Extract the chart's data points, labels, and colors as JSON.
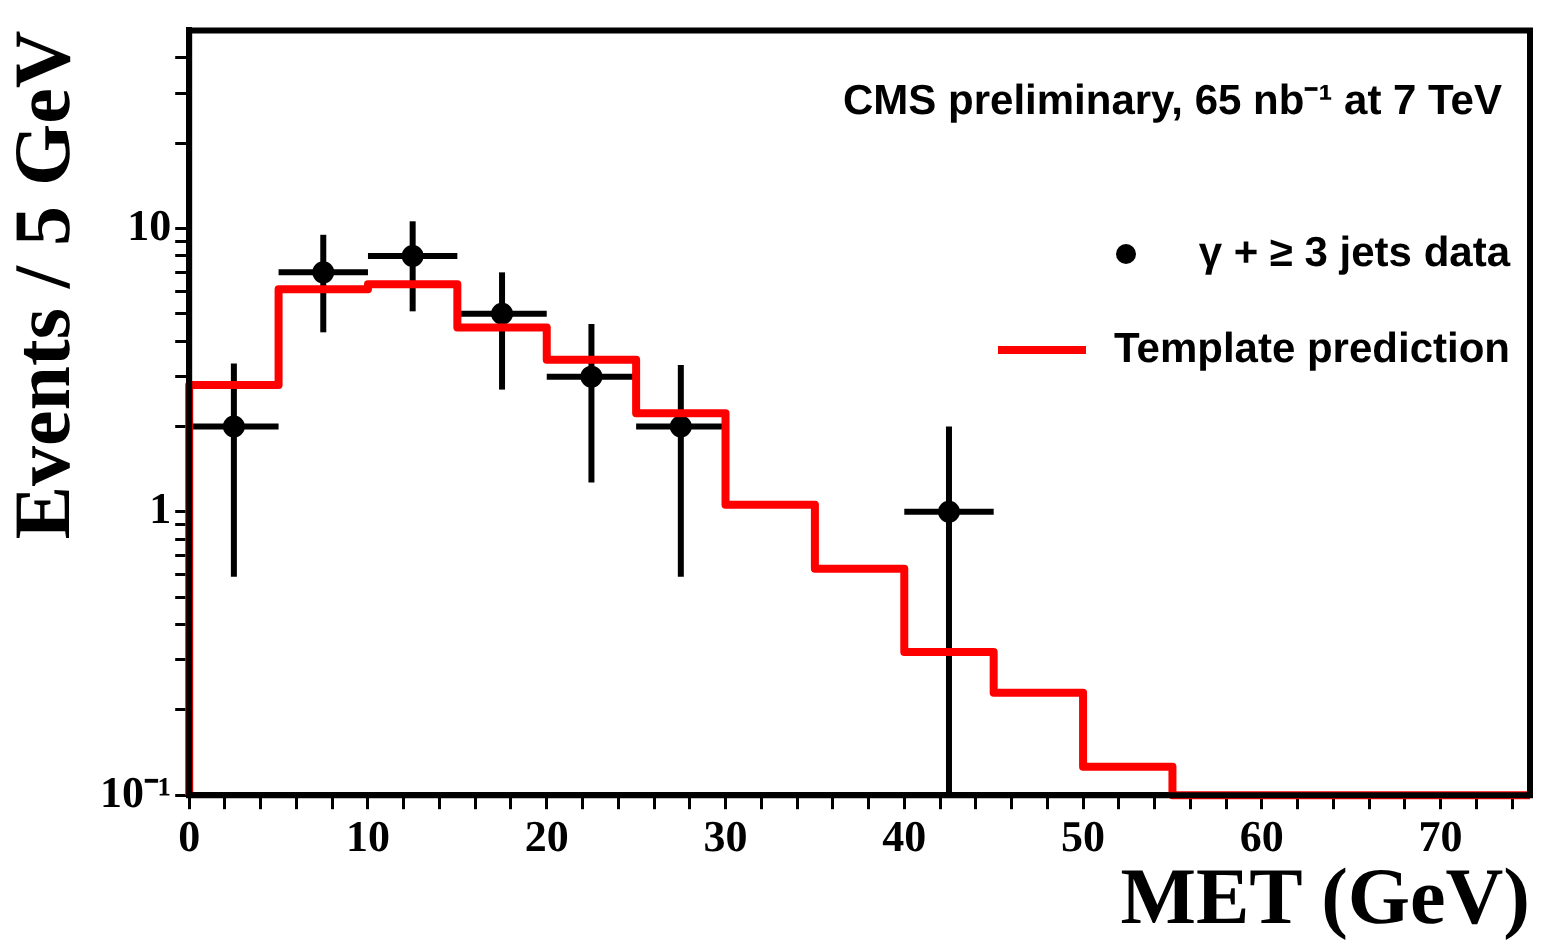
{
  "chart_data": {
    "type": "histogram",
    "title": "CMS preliminary, 65 nb⁻¹ at 7 TeV",
    "xlabel": "MET (GeV)",
    "ylabel": "Events / 5 GeV",
    "series": [
      {
        "type": "scatter",
        "name": "γ + ≥ 3 jets data",
        "color": "#000000",
        "marker": "circle",
        "x": [
          2.5,
          7.5,
          12.5,
          17.5,
          22.5,
          27.5,
          42.5
        ],
        "values": [
          2,
          7,
          8,
          5,
          3,
          2,
          1
        ],
        "errors": [
          [
            0.59,
            3.34
          ],
          [
            4.3,
            9.5
          ],
          [
            5.1,
            10.6
          ],
          [
            2.7,
            7
          ],
          [
            1.27,
            4.6
          ],
          [
            0.59,
            3.3
          ],
          [
            0.1,
            2
          ]
        ],
        "xerrors": [
          2.5,
          2.5,
          2.5,
          2.5,
          2.5,
          2.5,
          2.5
        ]
      },
      {
        "name": "Template prediction",
        "color": "#ff0000",
        "bins": [
          0,
          5,
          10,
          15,
          20,
          25,
          30,
          35,
          40,
          45,
          50,
          55,
          75
        ],
        "values": [
          2.8,
          6.1,
          6.35,
          4.47,
          3.44,
          2.23,
          1.06,
          0.63,
          0.32,
          0.23,
          0.126,
          0.1
        ]
      }
    ],
    "log": "y",
    "grid": false,
    "legend": "top right",
    "xlim": [
      0,
      75
    ],
    "ylim": [
      0.1,
      50
    ],
    "xticks": [
      0,
      {
        "value": 2,
        "label": null
      },
      {
        "value": 4,
        "label": null
      },
      {
        "value": 6,
        "label": null
      },
      {
        "value": 8,
        "label": null
      },
      10,
      {
        "value": 12,
        "label": null
      },
      {
        "value": 14,
        "label": null
      },
      {
        "value": 16,
        "label": null
      },
      {
        "value": 18,
        "label": null
      },
      20,
      {
        "value": 22,
        "label": null
      },
      {
        "value": 24,
        "label": null
      },
      {
        "value": 26,
        "label": null
      },
      {
        "value": 28,
        "label": null
      },
      30,
      {
        "value": 32,
        "label": null
      },
      {
        "value": 34,
        "label": null
      },
      {
        "value": 36,
        "label": null
      },
      {
        "value": 38,
        "label": null
      },
      40,
      {
        "value": 42,
        "label": null
      },
      {
        "value": 44,
        "label": null
      },
      {
        "value": 46,
        "label": null
      },
      {
        "value": 48,
        "label": null
      },
      50,
      {
        "value": 52,
        "label": null
      },
      {
        "value": 54,
        "label": null
      },
      {
        "value": 56,
        "label": null
      },
      {
        "value": 58,
        "label": null
      },
      60,
      {
        "value": 62,
        "label": null
      },
      {
        "value": 64,
        "label": null
      },
      {
        "value": 66,
        "label": null
      },
      {
        "value": 68,
        "label": null
      },
      70,
      {
        "value": 72,
        "label": null
      },
      {
        "value": 74,
        "label": null
      }
    ],
    "yticks": [
      {
        "value": 0.1,
        "label": "10⁻¹"
      },
      {
        "value": 0.2,
        "label": null
      },
      {
        "value": 0.3,
        "label": null
      },
      {
        "value": 0.4,
        "label": null
      },
      {
        "value": 0.5,
        "label": null
      },
      {
        "value": 0.6,
        "label": null
      },
      {
        "value": 0.7,
        "label": null
      },
      {
        "value": 0.8,
        "label": null
      },
      {
        "value": 0.9,
        "label": null
      },
      1,
      {
        "value": 2,
        "label": null
      },
      {
        "value": 3,
        "label": null
      },
      {
        "value": 4,
        "label": null
      },
      {
        "value": 5,
        "label": null
      },
      {
        "value": 6,
        "label": null
      },
      {
        "value": 7,
        "label": null
      },
      {
        "value": 8,
        "label": null
      },
      {
        "value": 9,
        "label": null
      },
      10,
      {
        "value": 20,
        "label": null
      },
      {
        "value": 30,
        "label": null
      },
      {
        "value": 40,
        "label": null
      }
    ]
  }
}
